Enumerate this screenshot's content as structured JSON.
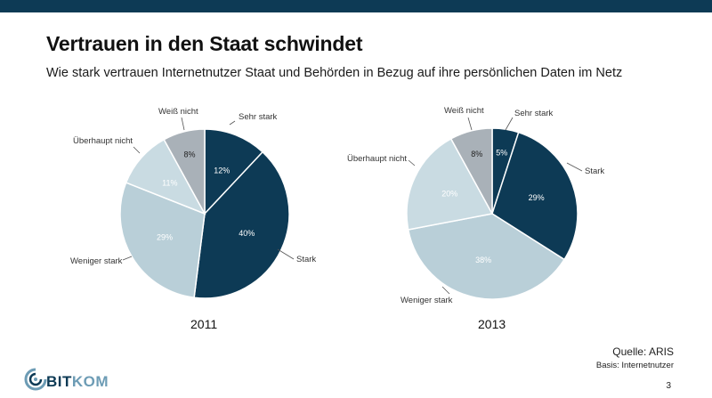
{
  "header": {
    "title": "Vertrauen in den Staat schwindet",
    "subtitle": "Wie stark vertrauen Internetnutzer Staat und Behörden in Bezug auf ihre persönlichen Daten im Netz"
  },
  "colors": {
    "sehr_stark": "#0d3a55",
    "stark": "#0d3a55",
    "weniger_stark": "#b9cfd8",
    "ueberhaupt_nicht": "#c9dbe2",
    "weiss_nicht": "#a9b1b8",
    "topbar": "#0d3a55"
  },
  "chart_data": [
    {
      "type": "pie",
      "title": "2011",
      "categories": [
        "Sehr stark",
        "Stark",
        "Weniger stark",
        "Überhaupt nicht",
        "Weiß nicht"
      ],
      "values": [
        12,
        40,
        29,
        11,
        8
      ],
      "value_labels": [
        "12%",
        "40%",
        "29%",
        "11%",
        "8%"
      ]
    },
    {
      "type": "pie",
      "title": "2013",
      "categories": [
        "Sehr stark",
        "Stark",
        "Weniger stark",
        "Überhaupt nicht",
        "Weiß nicht"
      ],
      "values": [
        5,
        29,
        38,
        20,
        8
      ],
      "value_labels": [
        "5%",
        "29%",
        "38%",
        "20%",
        "8%"
      ]
    }
  ],
  "footer": {
    "source": "Quelle: ARIS",
    "basis": "Basis: Internetnutzer",
    "page_number": "3",
    "logo_text_main": "BIT",
    "logo_text_accent": "KOM"
  }
}
